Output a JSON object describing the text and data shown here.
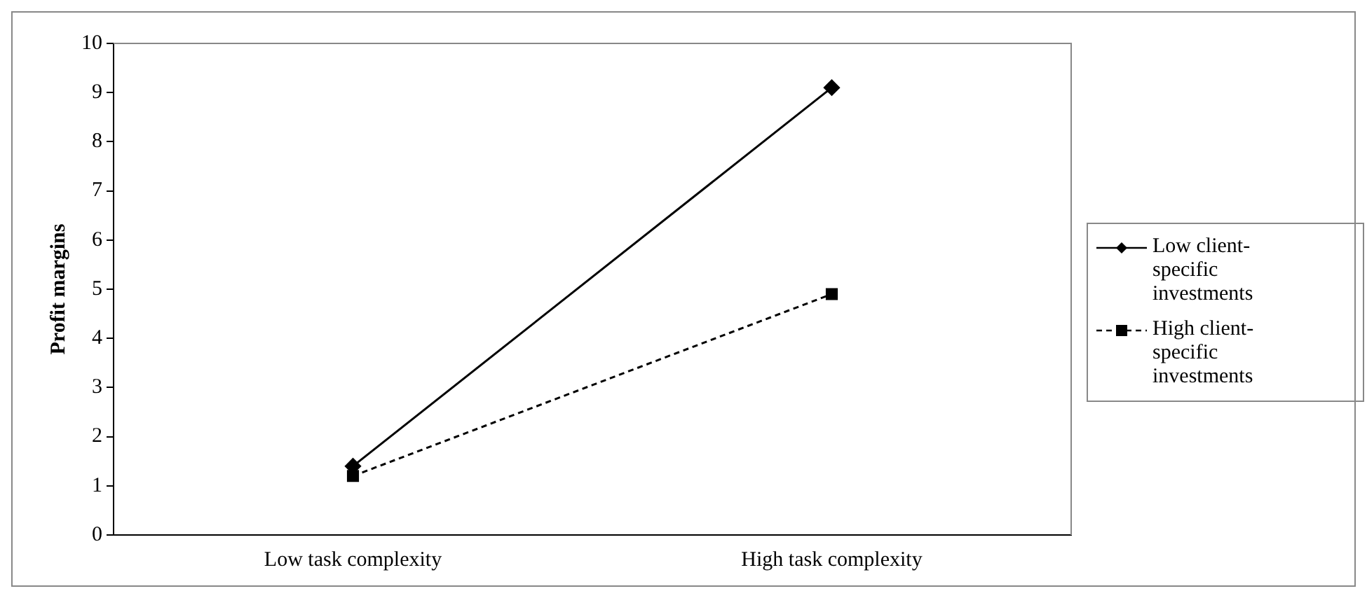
{
  "chart_data": {
    "type": "line",
    "ylabel": "Profit margins",
    "categories": [
      "Low task complexity",
      "High task complexity"
    ],
    "series": [
      {
        "name": "Low client-specific investments",
        "color": "#000000",
        "values": [
          1.4,
          9.1
        ],
        "marker": "diamond",
        "line_style": "solid"
      },
      {
        "name": "High client-specific investments",
        "color": "#000000",
        "values": [
          1.2,
          4.9
        ],
        "marker": "square",
        "line_style": "dashed"
      }
    ],
    "ylim": [
      0,
      10
    ],
    "yticks": [
      0,
      1,
      2,
      3,
      4,
      5,
      6,
      7,
      8,
      9,
      10
    ],
    "grid": false,
    "legend": "right"
  }
}
